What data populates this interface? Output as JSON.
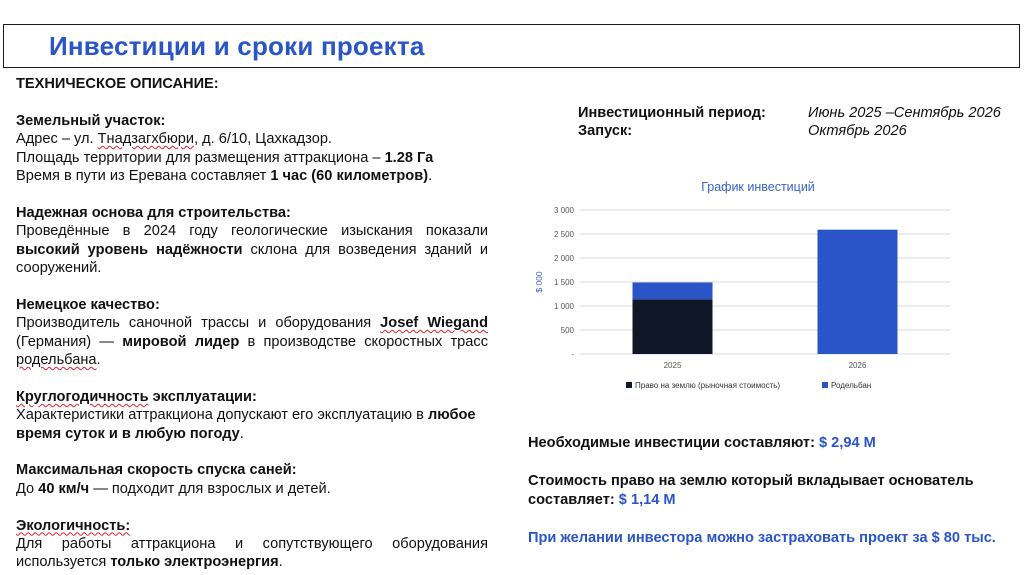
{
  "title": "Инвестиции и сроки проекта",
  "colors": {
    "accent": "#2a55c8",
    "dark": "#101828",
    "blue_bar": "#2a55c8"
  },
  "left": {
    "header": "ТЕХНИЧЕСКОЕ ОПИСАНИЕ:",
    "land": {
      "heading": "Земельный участок:",
      "address_prefix": "Адрес – ул. ",
      "address_street": "Тнадзагхбюри",
      "address_suffix": ", д. 6/10, Цахкадзор.",
      "area_text": "Площадь территории для размещения аттракциона – ",
      "area_value": "1.28 Га",
      "time_text": "Время в пути из Еревана составляет ",
      "time_value": "1 час (60 километров)",
      "time_end": "."
    },
    "foundation": {
      "heading": "Надежная основа для строительства:",
      "text1": "Проведённые в 2024 году геологические изыскания показали ",
      "bold": "высокий уровень надёжности",
      "text2": " склона для возведения зданий и сооружений."
    },
    "quality": {
      "heading": "Немецкое качество:",
      "text1": "Производитель саночной трассы и оборудования ",
      "brand": "Josef Wiegand",
      "text2": " (Германия) — ",
      "bold": "мировой лидер",
      "text3": " в производстве скоростных трасс ",
      "word": "родельбана",
      "text4": "."
    },
    "yearround": {
      "heading_word": "Круглогодичность",
      "heading_rest": " эксплуатации:",
      "text1": "Характеристики аттракциона допускают его эксплуатацию в ",
      "bold": "любое время суток и в любую погоду",
      "text2": "."
    },
    "speed": {
      "heading": "Максимальная скорость спуска саней:",
      "text1": "До ",
      "bold": "40 км/ч",
      "text2": " — подходит для взрослых и детей."
    },
    "eco": {
      "heading": "Экологичность:",
      "text1": "Для работы аттракциона и сопутствующего оборудования используется ",
      "bold": "только электроэнергия",
      "text2": "."
    }
  },
  "period": {
    "investment_label": "Инвестиционный период:",
    "investment_value": "Июнь 2025 –Сентябрь 2026",
    "launch_label": "Запуск:",
    "launch_value": "Октябрь 2026"
  },
  "chart_data": {
    "type": "bar",
    "stacked": true,
    "title": "График инвестиций",
    "ylabel": "$ 000",
    "categories": [
      "2025",
      "2026"
    ],
    "series": [
      {
        "name": "Право на землю (рыночная стоимость)",
        "values": [
          1140,
          0
        ],
        "color": "#101828"
      },
      {
        "name": "Родельбан",
        "values": [
          350,
          2590
        ],
        "color": "#2a55c8"
      }
    ],
    "ylim": [
      0,
      3000
    ],
    "yticks": [
      "-",
      "500",
      "1 000",
      "1 500",
      "2 000",
      "2 500",
      "3 000"
    ],
    "grid": true,
    "legend": "bottom"
  },
  "summary": {
    "investment_text": "Необходимые инвестиции составляют: ",
    "investment_value": "$  2,94 М",
    "land_text": "Стоимость право на землю который вкладывает основатель составляет: ",
    "land_value": "$ 1,14 М",
    "insurance": "При желании инвестора можно застраховать проект за $ 80 тыс."
  }
}
